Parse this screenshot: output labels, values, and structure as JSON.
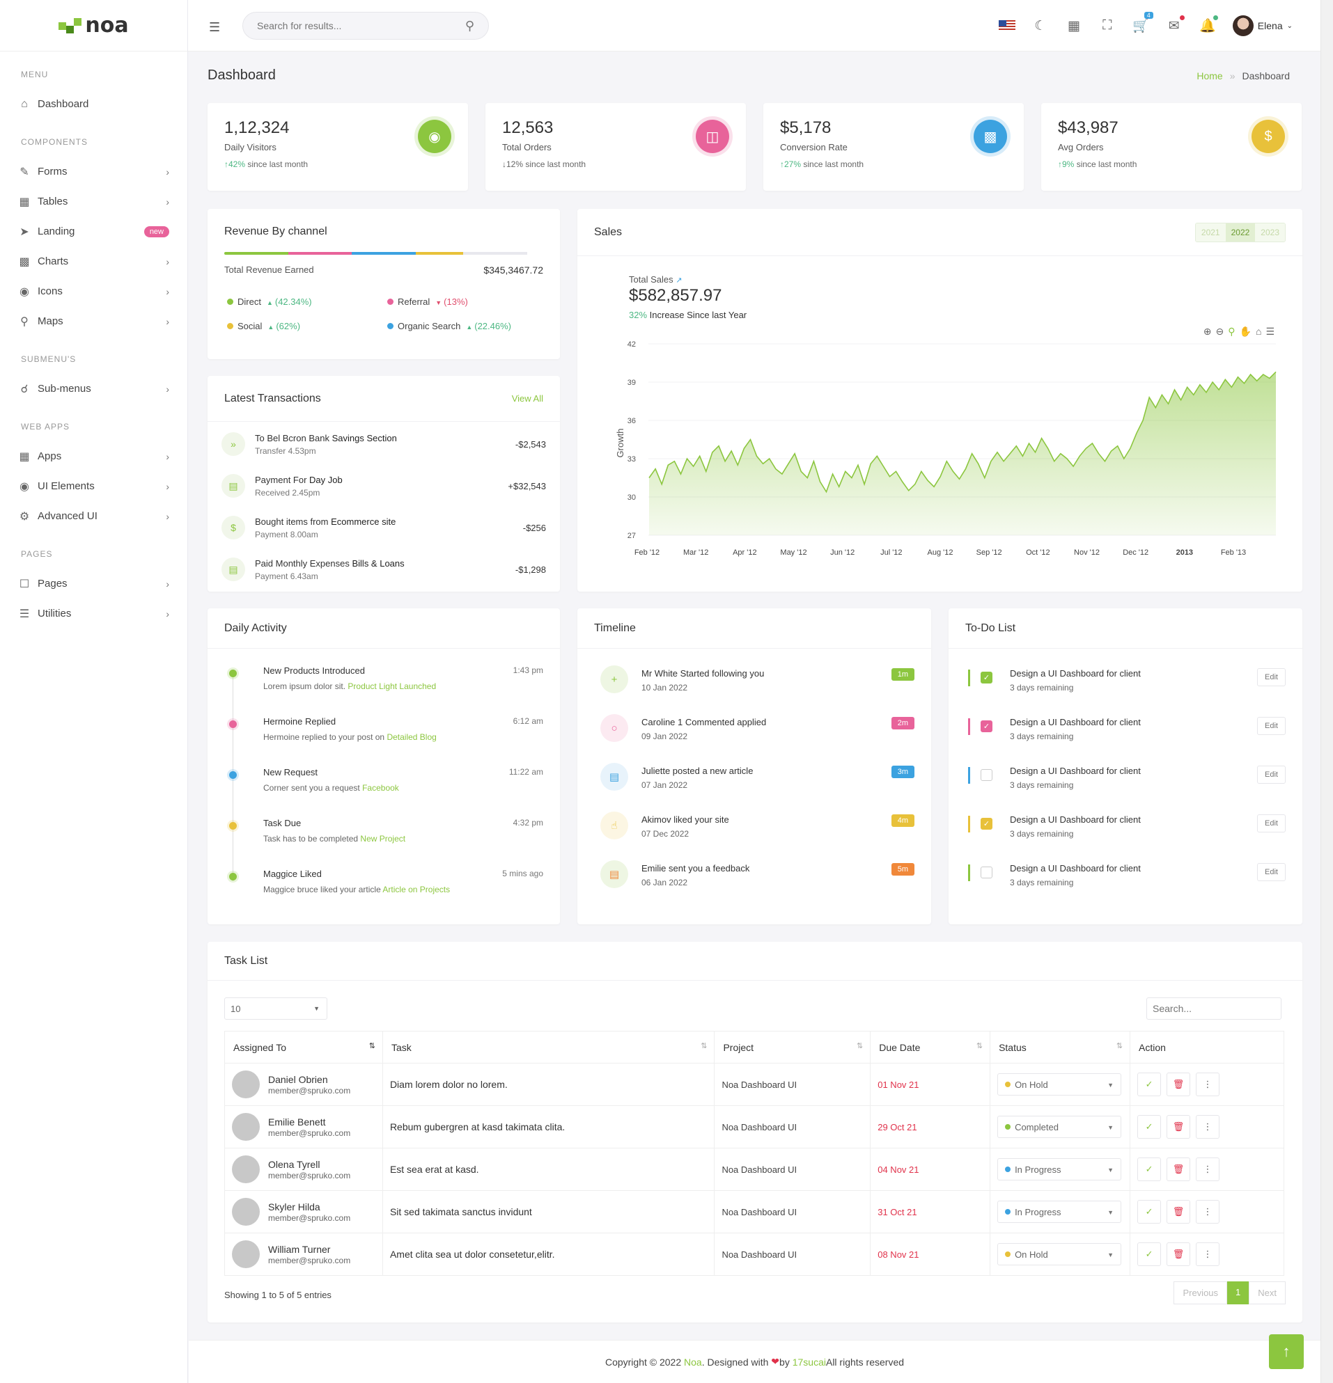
{
  "brand": "noa",
  "sidebar": {
    "sections": [
      {
        "title": "MENU",
        "items": [
          {
            "label": "Dashboard",
            "icon": "home-icon"
          }
        ]
      },
      {
        "title": "COMPONENTS",
        "items": [
          {
            "label": "Forms",
            "icon": "pencil-icon"
          },
          {
            "label": "Tables",
            "icon": "table-icon"
          },
          {
            "label": "Landing",
            "icon": "rocket-icon",
            "badge": "new"
          },
          {
            "label": "Charts",
            "icon": "bar-chart-icon"
          },
          {
            "label": "Icons",
            "icon": "globe-icon"
          },
          {
            "label": "Maps",
            "icon": "map-pin-icon"
          }
        ]
      },
      {
        "title": "SUBMENU'S",
        "items": [
          {
            "label": "Sub-menus",
            "icon": "share-icon"
          }
        ]
      },
      {
        "title": "WEB APPS",
        "items": [
          {
            "label": "Apps",
            "icon": "grid-icon"
          },
          {
            "label": "UI Elements",
            "icon": "layers-icon"
          },
          {
            "label": "Advanced UI",
            "icon": "settings-icon"
          }
        ]
      },
      {
        "title": "PAGES",
        "items": [
          {
            "label": "Pages",
            "icon": "file-icon"
          },
          {
            "label": "Utilities",
            "icon": "stack-icon"
          }
        ]
      }
    ]
  },
  "header": {
    "search_placeholder": "Search for results...",
    "cart_count": "4",
    "user_name": "Elena"
  },
  "page": {
    "title": "Dashboard",
    "breadcrumb_home": "Home",
    "breadcrumb_current": "Dashboard"
  },
  "stats": [
    {
      "value": "1,12,324",
      "label": "Daily Visitors",
      "change": "42%",
      "suffix": "since last month",
      "dir": "up",
      "color": "#8cc63f",
      "icon": "eye-icon"
    },
    {
      "value": "12,563",
      "label": "Total Orders",
      "change": "12%",
      "suffix": "since last month",
      "dir": "down",
      "color": "#e8639a",
      "icon": "bag-icon"
    },
    {
      "value": "$5,178",
      "label": "Conversion Rate",
      "change": "27%",
      "suffix": "since last month",
      "dir": "up",
      "color": "#3ca2e0",
      "icon": "report-icon"
    },
    {
      "value": "$43,987",
      "label": "Avg Orders",
      "change": "9%",
      "suffix": "since last month",
      "dir": "up",
      "color": "#e8c13a",
      "icon": "invoice-icon"
    }
  ],
  "revenue": {
    "title": "Revenue By channel",
    "total_label": "Total Revenue Earned",
    "total_value": "$345,3467.72",
    "channels": [
      {
        "name": "Direct",
        "change": "(42.34%)",
        "dir": "up",
        "color": "#8cc63f"
      },
      {
        "name": "Referral",
        "change": "(13%)",
        "dir": "down",
        "color": "#e8639a"
      },
      {
        "name": "Social",
        "change": "(62%)",
        "dir": "up",
        "color": "#e8c13a"
      },
      {
        "name": "Organic Search",
        "change": "(22.46%)",
        "dir": "up",
        "color": "#3ca2e0"
      }
    ],
    "bar_segments": [
      0.2,
      0.2,
      0.2,
      0.15,
      0.2
    ],
    "bar_colors": [
      "#8cc63f",
      "#e8639a",
      "#3ca2e0",
      "#e8c13a",
      "#e8e8ee"
    ]
  },
  "transactions": {
    "title": "Latest Transactions",
    "view_all": "View All",
    "items": [
      {
        "pre": "To Bel Bcron Bank",
        "bold": "Savings Section",
        "sub": "Transfer 4.53pm",
        "amount": "-$2,543",
        "icon": "double-chevron-icon"
      },
      {
        "pre": "Payment For",
        "bold": "Day Job",
        "sub": "Received 2.45pm",
        "amount": "+$32,543",
        "icon": "briefcase-icon"
      },
      {
        "pre": "Bought items from",
        "bold": "Ecommerce site",
        "sub": "Payment 8.00am",
        "amount": "-$256",
        "icon": "dollar-icon"
      },
      {
        "pre": "Paid Monthly Expenses",
        "bold": "Bills & Loans",
        "sub": "Payment 6.43am",
        "amount": "-$1,298",
        "icon": "document-icon"
      }
    ]
  },
  "sales": {
    "title": "Sales",
    "years": [
      "2021",
      "2022",
      "2023"
    ],
    "active_year": "2022",
    "total_label": "Total Sales",
    "total_value": "$582,857.97",
    "increase_pct": "32%",
    "increase_text": "Increase Since last Year"
  },
  "chart_data": {
    "type": "area",
    "title": "",
    "xlabel": "",
    "ylabel": "Growth",
    "ylim": [
      27,
      42
    ],
    "yticks": [
      27,
      30,
      33,
      36,
      39,
      42
    ],
    "xticks": [
      "Feb '12",
      "Mar '12",
      "Apr '12",
      "May '12",
      "Jun '12",
      "Jul '12",
      "Aug '12",
      "Sep '12",
      "Oct '12",
      "Nov '12",
      "Dec '12",
      "2013",
      "Feb '13"
    ],
    "color": "#8cc63f",
    "grid": true,
    "series": [
      {
        "values": [
          31.5,
          32.2,
          31.0,
          32.5,
          32.8,
          31.8,
          33.0,
          32.4,
          33.2,
          32.0,
          33.5,
          34.0,
          32.8,
          33.6,
          32.5,
          33.8,
          34.5,
          33.2,
          32.6,
          33.0,
          32.2,
          31.8,
          32.6,
          33.4,
          32.0,
          31.5,
          32.8,
          31.2,
          30.4,
          31.8,
          30.8,
          32.0,
          31.5,
          32.5,
          31.0,
          32.6,
          33.2,
          32.4,
          31.6,
          32.0,
          31.2,
          30.5,
          31.0,
          32.0,
          31.3,
          30.8,
          31.6,
          32.8,
          32.0,
          31.4,
          32.2,
          33.4,
          32.6,
          31.5,
          32.8,
          33.5,
          32.8,
          33.4,
          34.0,
          33.2,
          34.2,
          33.5,
          34.6,
          33.8,
          32.8,
          33.4,
          33.0,
          32.4,
          33.2,
          33.8,
          34.2,
          33.4,
          32.8,
          33.6,
          34.0,
          33.0,
          33.8,
          35.0,
          36.0,
          37.8,
          37.0,
          38.0,
          37.3,
          38.4,
          37.6,
          38.6,
          38.0,
          38.8,
          38.2,
          39.0,
          38.4,
          39.2,
          38.6,
          39.4,
          38.9,
          39.6,
          39.1,
          39.6,
          39.3,
          39.8
        ]
      }
    ]
  },
  "activity": {
    "title": "Daily Activity",
    "items": [
      {
        "title": "New Products Introduced",
        "text": "Lorem ipsum dolor sit.",
        "link": "Product Light Launched",
        "time": "1:43 pm",
        "color": "#8cc63f"
      },
      {
        "title": "Hermoine Replied",
        "text": "Hermoine replied to your post on",
        "link": "Detailed Blog",
        "time": "6:12 am",
        "color": "#e8639a"
      },
      {
        "title": "New Request",
        "text": "Corner sent you a request",
        "link": "Facebook",
        "time": "11:22 am",
        "color": "#3ca2e0"
      },
      {
        "title": "Task Due",
        "text": "Task has to be completed",
        "link": "New Project",
        "time": "4:32 pm",
        "color": "#e8c13a"
      },
      {
        "title": "Maggice Liked",
        "text": "Maggice bruce liked your article",
        "link": "Article on Projects",
        "time": "5 mins ago",
        "color": "#8cc63f"
      }
    ]
  },
  "timeline": {
    "title": "Timeline",
    "items": [
      {
        "title": "Mr White Started following you",
        "date": "10 Jan 2022",
        "badge": "1m",
        "color": "#8cc63f",
        "bg": "#eef6e3",
        "icon": "user-plus-icon"
      },
      {
        "title": "Caroline 1 Commented applied",
        "date": "09 Jan 2022",
        "badge": "2m",
        "color": "#e8639a",
        "bg": "#fceaf1",
        "icon": "comment-icon"
      },
      {
        "title": "Juliette posted a new article",
        "date": "07 Jan 2022",
        "badge": "3m",
        "color": "#3ca2e0",
        "bg": "#e8f3fb",
        "icon": "clipboard-icon"
      },
      {
        "title": "Akimov liked your site",
        "date": "07 Dec 2022",
        "badge": "4m",
        "color": "#e8c13a",
        "bg": "#fcf6e3",
        "icon": "thumbs-up-icon"
      },
      {
        "title": "Emilie sent you a feedback",
        "date": "06 Jan 2022",
        "badge": "5m",
        "color": "#f0883a",
        "bg": "#eef6e3",
        "icon": "book-icon"
      }
    ]
  },
  "todo": {
    "title": "To-Do List",
    "edit_label": "Edit",
    "items": [
      {
        "title": "Design a UI Dashboard for client",
        "sub": "3 days remaining",
        "checked": true,
        "color": "#8cc63f"
      },
      {
        "title": "Design a UI Dashboard for client",
        "sub": "3 days remaining",
        "checked": true,
        "color": "#e8639a"
      },
      {
        "title": "Design a UI Dashboard for client",
        "sub": "3 days remaining",
        "checked": false,
        "color": "#3ca2e0"
      },
      {
        "title": "Design a UI Dashboard for client",
        "sub": "3 days remaining",
        "checked": true,
        "color": "#e8c13a"
      },
      {
        "title": "Design a UI Dashboard for client",
        "sub": "3 days remaining",
        "checked": false,
        "color": "#8cc63f"
      }
    ]
  },
  "tasks": {
    "title": "Task List",
    "page_size": "10",
    "search_placeholder": "Search...",
    "columns": [
      "Assigned To",
      "Task",
      "Project",
      "Due Date",
      "Status",
      "Action"
    ],
    "rows": [
      {
        "name": "Daniel Obrien",
        "email": "member@spruko.com",
        "task": "Diam lorem dolor no lorem.",
        "project": "Noa Dashboard UI",
        "due": "01 Nov 21",
        "status": "On Hold",
        "status_color": "#e8c13a"
      },
      {
        "name": "Emilie Benett",
        "email": "member@spruko.com",
        "task": "Rebum gubergren at kasd takimata clita.",
        "project": "Noa Dashboard UI",
        "due": "29 Oct 21",
        "status": "Completed",
        "status_color": "#8cc63f"
      },
      {
        "name": "Olena Tyrell",
        "email": "member@spruko.com",
        "task": "Est sea erat at kasd.",
        "project": "Noa Dashboard UI",
        "due": "04 Nov 21",
        "status": "In Progress",
        "status_color": "#3ca2e0"
      },
      {
        "name": "Skyler Hilda",
        "email": "member@spruko.com",
        "task": "Sit sed takimata sanctus invidunt",
        "project": "Noa Dashboard UI",
        "due": "31 Oct 21",
        "status": "In Progress",
        "status_color": "#3ca2e0"
      },
      {
        "name": "William Turner",
        "email": "member@spruko.com",
        "task": "Amet clita sea ut dolor consetetur,elitr.",
        "project": "Noa Dashboard UI",
        "due": "08 Nov 21",
        "status": "On Hold",
        "status_color": "#e8c13a"
      }
    ],
    "showing": "Showing 1 to 5 of 5 entries",
    "pagination": {
      "prev": "Previous",
      "current": "1",
      "next": "Next"
    }
  },
  "footer": {
    "copyright": "Copyright © 2022",
    "brand": "Noa",
    "designed": ". Designed with",
    "by": "by",
    "author": "17sucai",
    "rights": "All rights reserved"
  }
}
